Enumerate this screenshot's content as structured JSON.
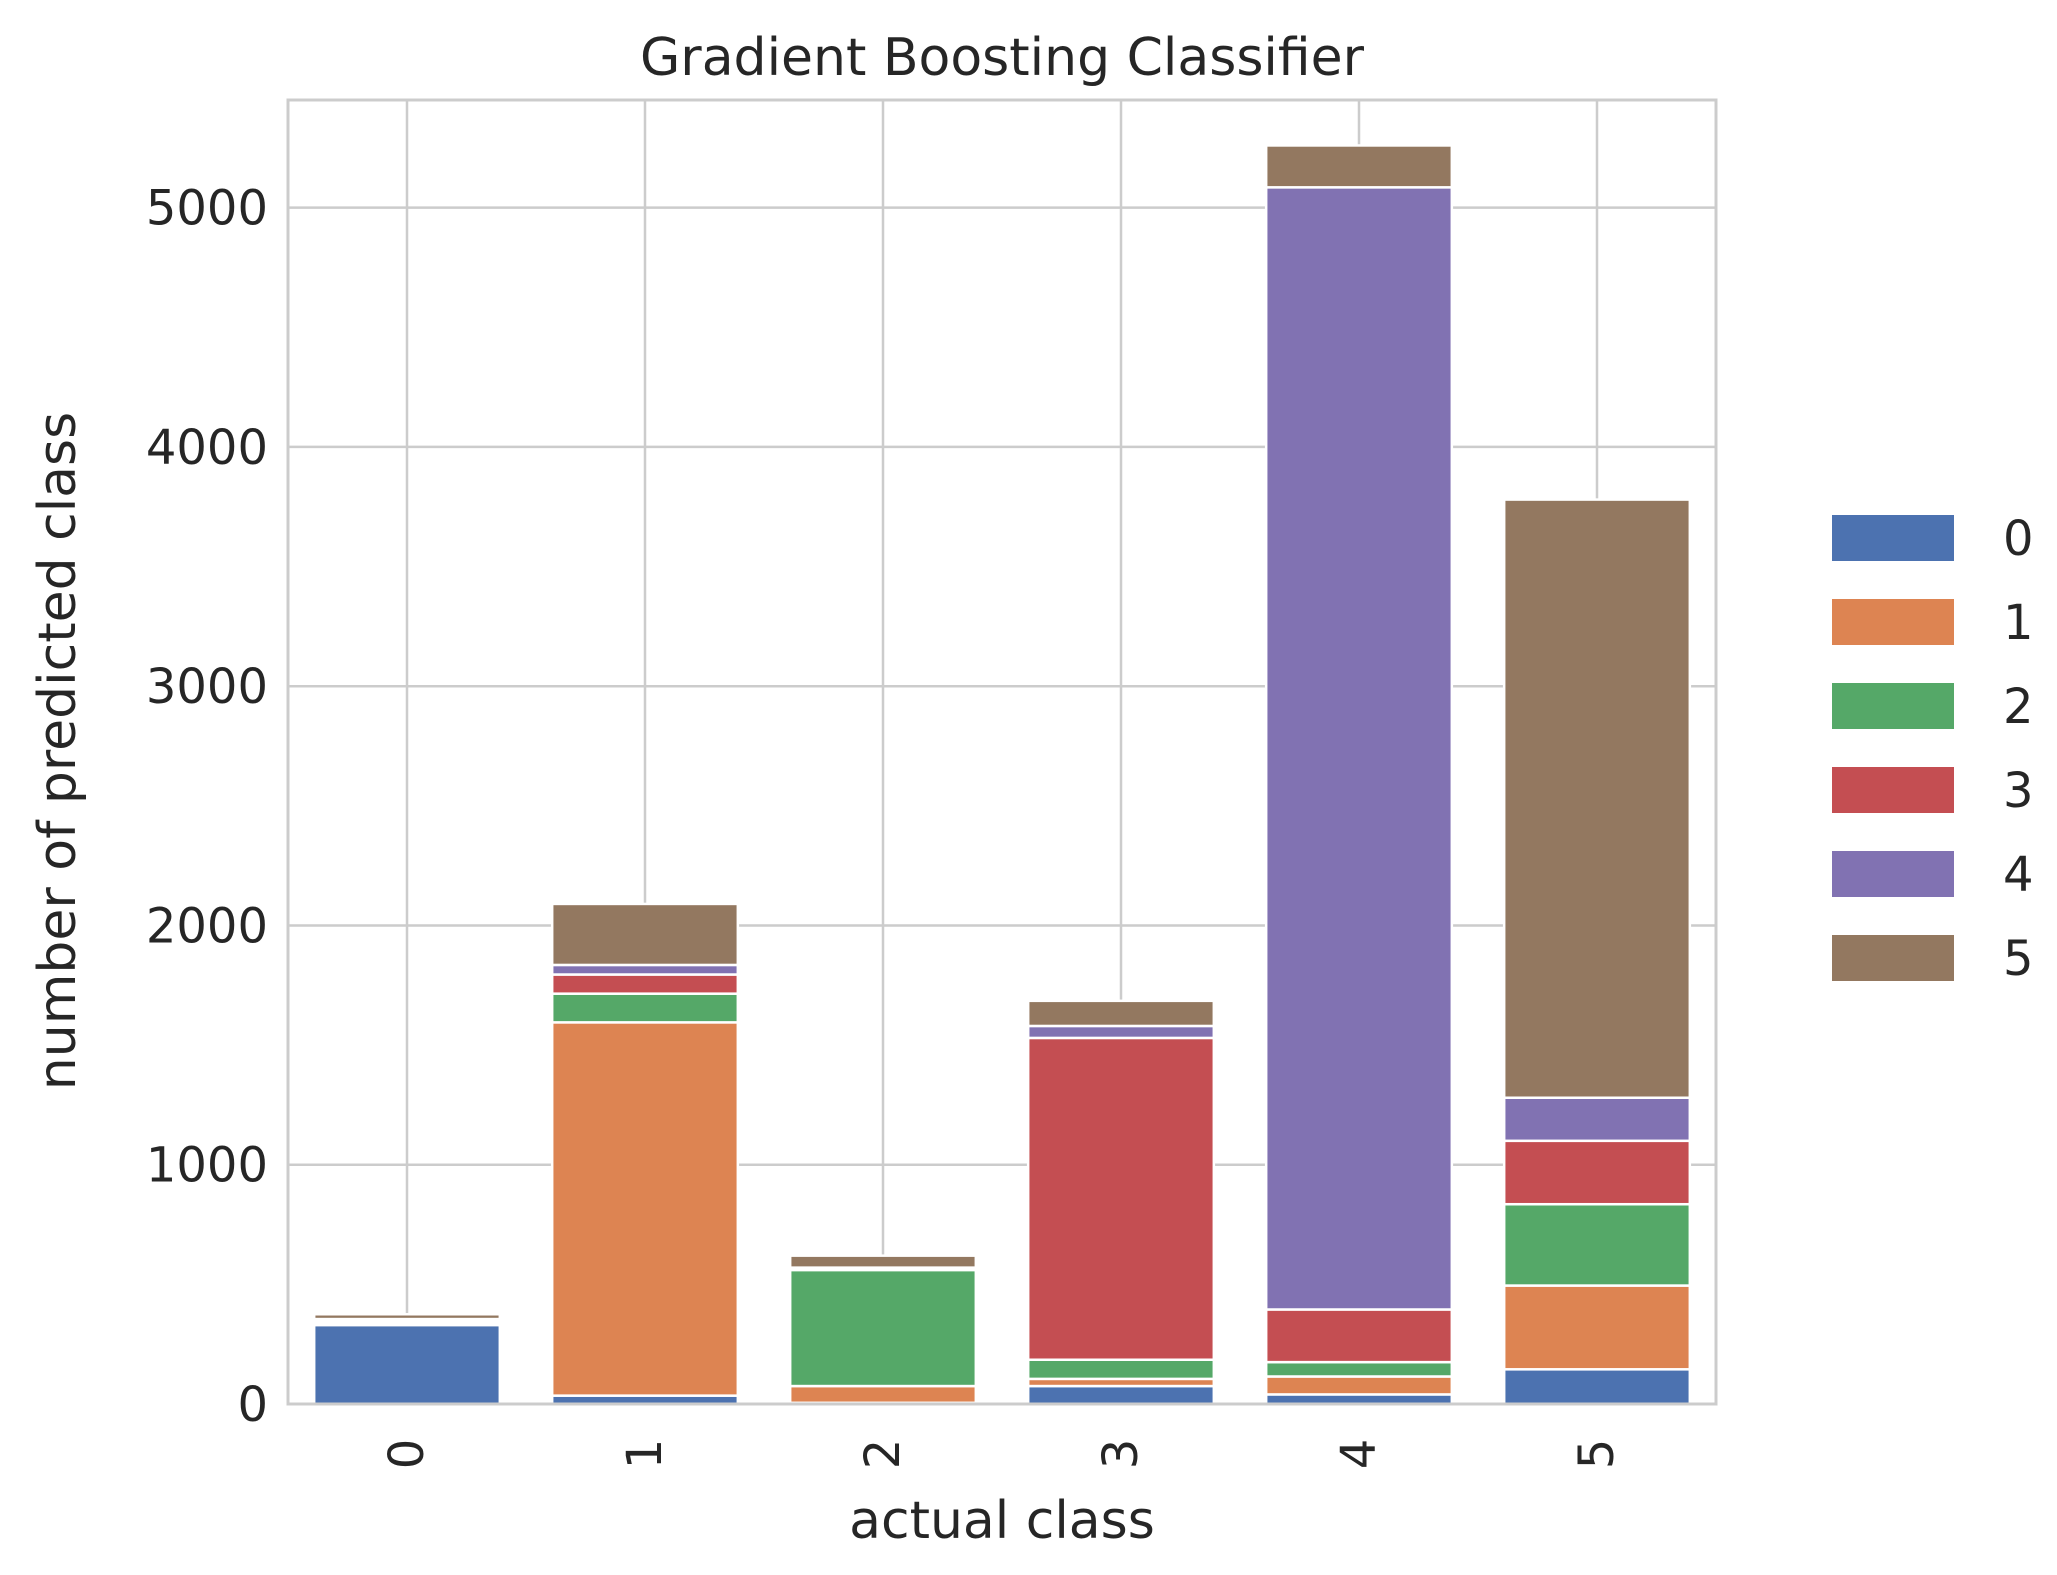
{
  "chart_data": {
    "type": "bar",
    "stacked": true,
    "title": "Gradient Boosting Classifier",
    "xlabel": "actual class",
    "ylabel": "number of predicted class",
    "categories": [
      "0",
      "1",
      "2",
      "3",
      "4",
      "5"
    ],
    "ylim": [
      0,
      5450
    ],
    "yticks": [
      0,
      1000,
      2000,
      3000,
      4000,
      5000
    ],
    "grid": true,
    "legend_position": "right",
    "series": [
      {
        "name": "0",
        "color": "#4c72b0",
        "values": [
          330,
          35,
          5,
          75,
          40,
          145
        ]
      },
      {
        "name": "1",
        "color": "#dd8452",
        "values": [
          10,
          1560,
          70,
          30,
          75,
          350
        ]
      },
      {
        "name": "2",
        "color": "#55a868",
        "values": [
          5,
          120,
          485,
          80,
          60,
          340
        ]
      },
      {
        "name": "3",
        "color": "#c44e52",
        "values": [
          5,
          80,
          5,
          1345,
          220,
          265
        ]
      },
      {
        "name": "4",
        "color": "#8172b2",
        "values": [
          5,
          40,
          5,
          50,
          4690,
          180
        ]
      },
      {
        "name": "5",
        "color": "#937860",
        "values": [
          20,
          255,
          50,
          105,
          175,
          2500
        ]
      }
    ]
  }
}
